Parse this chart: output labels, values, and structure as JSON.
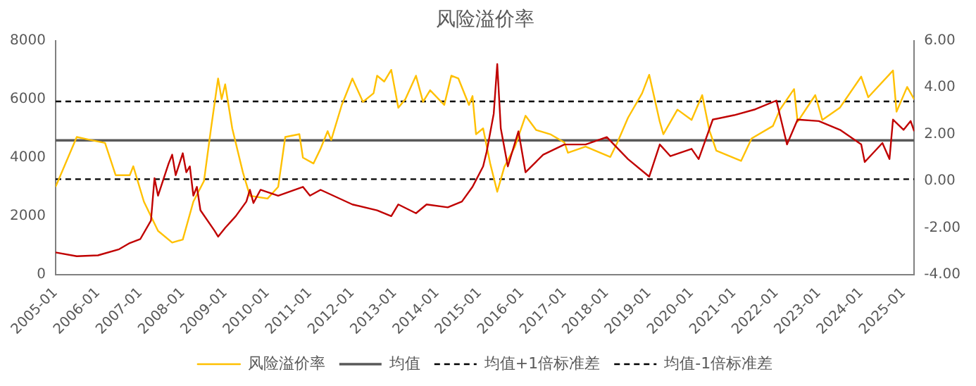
{
  "chart_data": {
    "type": "line",
    "title": "风险溢价率",
    "xlim": [
      "2005-01",
      "2025-04"
    ],
    "xticks": [
      "2005-01",
      "2006-01",
      "2007-01",
      "2008-01",
      "2009-01",
      "2010-01",
      "2011-01",
      "2012-01",
      "2013-01",
      "2014-01",
      "2015-01",
      "2016-01",
      "2017-01",
      "2018-01",
      "2019-01",
      "2020-01",
      "2021-01",
      "2022-01",
      "2023-01",
      "2024-01",
      "2025-01"
    ],
    "ylim": [
      0,
      8000
    ],
    "yticks": [
      0,
      2000,
      4000,
      6000,
      8000
    ],
    "y2lim": [
      -4,
      6
    ],
    "y2ticks": [
      {
        "value": -4,
        "label": "-4.00"
      },
      {
        "value": -2,
        "label": "-2.00"
      },
      {
        "value": 0,
        "label": "0.00"
      },
      {
        "value": 2,
        "label": "2.00"
      },
      {
        "value": 4,
        "label": "4.00"
      },
      {
        "value": 6,
        "label": "6.00"
      }
    ],
    "grid": false,
    "legend": "bottom",
    "marker": "none",
    "series": [
      {
        "color": "#c00000",
        "axis": "y",
        "x": [
          "2005-01",
          "2005-07",
          "2006-01",
          "2006-07",
          "2006-10",
          "2007-01",
          "2007-04",
          "2007-05",
          "2007-06",
          "2007-09",
          "2007-10",
          "2007-11",
          "2008-01",
          "2008-02",
          "2008-03",
          "2008-04",
          "2008-05",
          "2008-06",
          "2008-10",
          "2008-11",
          "2009-01",
          "2009-04",
          "2009-07",
          "2009-08",
          "2009-09",
          "2009-11",
          "2010-04",
          "2010-11",
          "2011-01",
          "2011-04",
          "2012-01",
          "2012-08",
          "2012-12",
          "2013-02",
          "2013-07",
          "2013-10",
          "2014-04",
          "2014-08",
          "2014-11",
          "2015-02",
          "2015-03",
          "2015-05",
          "2015-06",
          "2015-07",
          "2015-09",
          "2015-12",
          "2016-02",
          "2016-07",
          "2017-01",
          "2017-07",
          "2018-01",
          "2018-07",
          "2019-01",
          "2019-04",
          "2019-07",
          "2020-01",
          "2020-03",
          "2020-07",
          "2021-01",
          "2021-07",
          "2022-01",
          "2022-04",
          "2022-07",
          "2023-01",
          "2023-07",
          "2024-01",
          "2024-02",
          "2024-07",
          "2024-09",
          "2024-10",
          "2025-01",
          "2025-03",
          "2025-04"
        ],
        "values": [
          760,
          630,
          660,
          870,
          1080,
          1220,
          1850,
          3300,
          2700,
          3800,
          4100,
          3400,
          4150,
          3500,
          3700,
          2700,
          3000,
          2200,
          1500,
          1300,
          1600,
          2000,
          2500,
          2900,
          2450,
          2900,
          2700,
          3000,
          2700,
          2900,
          2400,
          2200,
          2000,
          2400,
          2100,
          2400,
          2300,
          2500,
          3000,
          3700,
          4200,
          5500,
          7200,
          5000,
          3700,
          4900,
          3500,
          4100,
          4450,
          4450,
          4700,
          3950,
          3350,
          4450,
          4050,
          4300,
          3950,
          5300,
          5450,
          5650,
          5950,
          4450,
          5300,
          5250,
          4950,
          4450,
          3850,
          4500,
          3950,
          5300,
          4950,
          5250,
          4900
        ]
      },
      {
        "name": "风险溢价率",
        "color": "#ffc000",
        "axis": "y2",
        "x": [
          "2005-01",
          "2005-07",
          "2005-11",
          "2006-03",
          "2006-06",
          "2006-10",
          "2006-11",
          "2007-02",
          "2007-06",
          "2007-10",
          "2008-01",
          "2008-04",
          "2008-07",
          "2008-09",
          "2008-11",
          "2008-12",
          "2009-01",
          "2009-03",
          "2009-06",
          "2009-08",
          "2010-01",
          "2010-04",
          "2010-06",
          "2010-10",
          "2010-11",
          "2011-02",
          "2011-04",
          "2011-06",
          "2011-07",
          "2011-10",
          "2012-01",
          "2012-04",
          "2012-07",
          "2012-08",
          "2012-10",
          "2012-12",
          "2013-02",
          "2013-04",
          "2013-07",
          "2013-09",
          "2013-11",
          "2014-03",
          "2014-05",
          "2014-07",
          "2014-10",
          "2014-11",
          "2014-12",
          "2015-02",
          "2015-04",
          "2015-06",
          "2015-08",
          "2015-11",
          "2016-02",
          "2016-05",
          "2016-09",
          "2017-01",
          "2017-02",
          "2017-07",
          "2018-02",
          "2018-04",
          "2018-07",
          "2018-11",
          "2019-01",
          "2019-04",
          "2019-05",
          "2019-09",
          "2020-01",
          "2020-04",
          "2020-06",
          "2020-08",
          "2021-03",
          "2021-06",
          "2021-12",
          "2022-02",
          "2022-06",
          "2022-07",
          "2022-12",
          "2023-02",
          "2023-07",
          "2024-01",
          "2024-03",
          "2024-10",
          "2024-11",
          "2025-02",
          "2025-04"
        ],
        "values": [
          -0.25,
          1.88,
          1.75,
          1.63,
          0.25,
          0.25,
          0.63,
          -0.88,
          -2.13,
          -2.63,
          -2.5,
          -0.88,
          0,
          2.25,
          4.38,
          3.5,
          4.13,
          2.25,
          0.38,
          -0.63,
          -0.75,
          -0.25,
          1.88,
          2,
          1,
          0.75,
          1.38,
          2.13,
          1.75,
          3.25,
          4.38,
          3.38,
          3.75,
          4.5,
          4.25,
          4.75,
          3.13,
          3.5,
          4.5,
          3.38,
          3.88,
          3.25,
          4.5,
          4.38,
          3.25,
          3.63,
          2,
          2.25,
          0.75,
          -0.46,
          0.6,
          1.47,
          2.79,
          2.18,
          2,
          1.65,
          1.21,
          1.47,
          1.03,
          1.65,
          2.7,
          3.75,
          4.54,
          2.53,
          2,
          3.05,
          2.61,
          3.67,
          2.18,
          1.3,
          0.86,
          1.82,
          2.35,
          3.05,
          3.93,
          2.53,
          3.67,
          2.61,
          3.14,
          4.46,
          3.58,
          4.72,
          2.96,
          4.02,
          3.49
        ]
      }
    ],
    "ref_lines": [
      {
        "axis": "y2",
        "value": 1.74,
        "label": "均值",
        "color": "#595959",
        "line_style": "solid"
      },
      {
        "axis": "y2",
        "value": 3.4,
        "label": "均值+1倍标准差",
        "color": "#000000",
        "line_style": "dashed"
      },
      {
        "axis": "y2",
        "value": 0.08,
        "label": "均值-1倍标准差",
        "color": "#000000",
        "line_style": "dashed"
      }
    ]
  }
}
